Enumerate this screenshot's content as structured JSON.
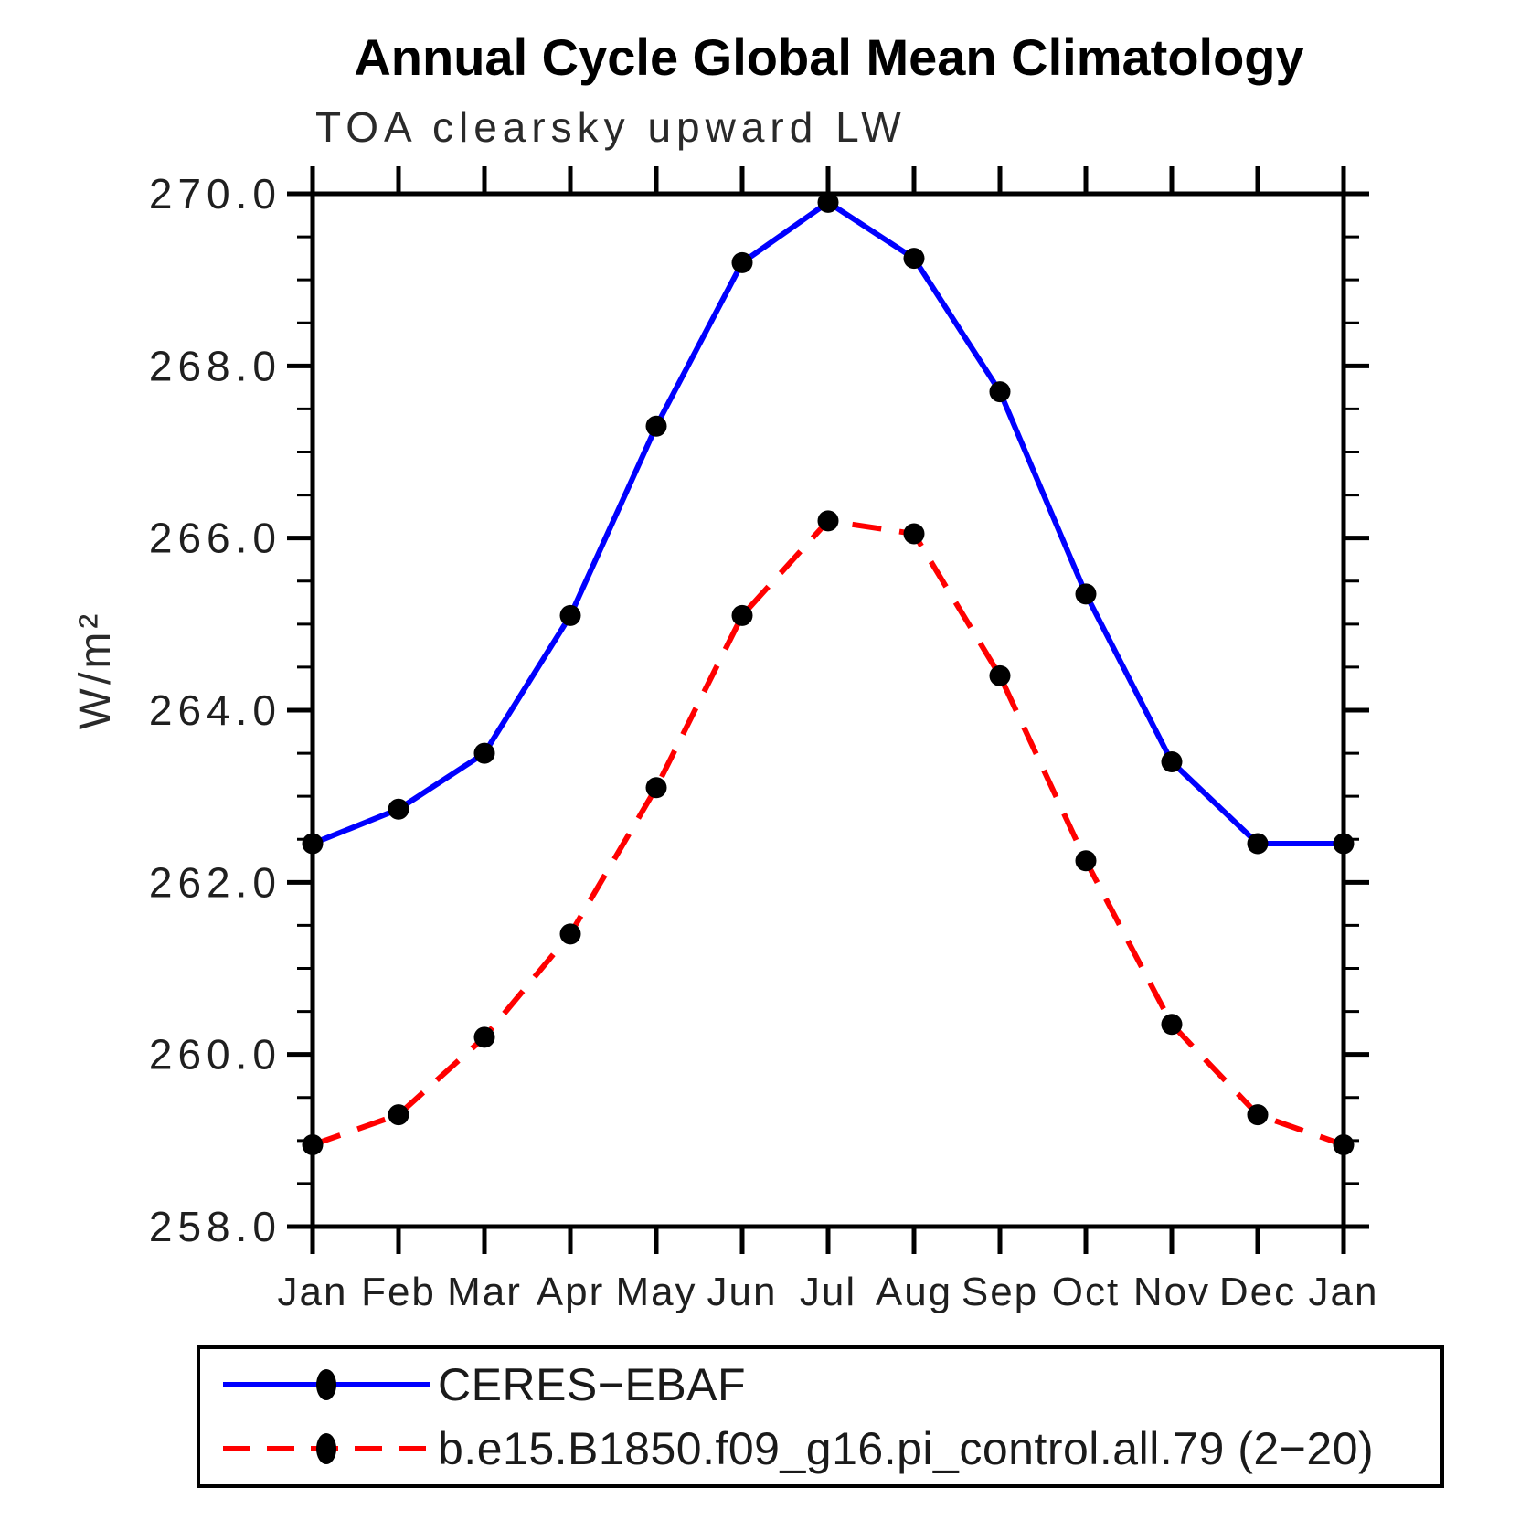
{
  "title": "Annual Cycle Global Mean Climatology",
  "subtitle": "TOA clearsky upward LW",
  "y_axis_title": "W/m²",
  "colors": {
    "frame": "#000000",
    "obs_line": "#0000ff",
    "model_line": "#ff0000",
    "marker": "#000000",
    "background": "#ffffff"
  },
  "legend": {
    "entries": [
      {
        "label": "CERES−EBAF",
        "line_style": "solid",
        "line_color": "#0000ff"
      },
      {
        "label": "b.e15.B1850.f09_g16.pi_control.all.79 (2−20)",
        "line_style": "dashed",
        "line_color": "#ff0000"
      }
    ]
  },
  "chart_data": {
    "type": "line",
    "title": "Annual Cycle Global Mean Climatology",
    "subtitle": "TOA clearsky upward LW",
    "xlabel": "",
    "ylabel": "W/m²",
    "x_tick_labels": [
      "Jan",
      "Feb",
      "Mar",
      "Apr",
      "May",
      "Jun",
      "Jul",
      "Aug",
      "Sep",
      "Oct",
      "Nov",
      "Dec",
      "Jan"
    ],
    "ylim": [
      258.0,
      270.0
    ],
    "ytick_interval": 2.0,
    "ytick_minor_interval": 0.5,
    "ytick_label_format": "one_decimal",
    "grid": false,
    "legend_position": "bottom-left-box",
    "series": [
      {
        "name": "CERES−EBAF",
        "color": "#0000ff",
        "style": "solid",
        "marker": "filled-circle",
        "marker_color": "#000000",
        "values": [
          262.45,
          262.85,
          263.5,
          265.1,
          267.3,
          269.2,
          269.9,
          269.25,
          267.7,
          265.35,
          263.4,
          262.45,
          262.45
        ]
      },
      {
        "name": "b.e15.B1850.f09_g16.pi_control.all.79 (2−20)",
        "color": "#ff0000",
        "style": "dashed",
        "marker": "filled-circle",
        "marker_color": "#000000",
        "values": [
          258.95,
          259.3,
          260.2,
          261.4,
          263.1,
          265.1,
          266.2,
          266.05,
          264.4,
          262.25,
          260.35,
          259.3,
          258.95
        ]
      }
    ]
  }
}
